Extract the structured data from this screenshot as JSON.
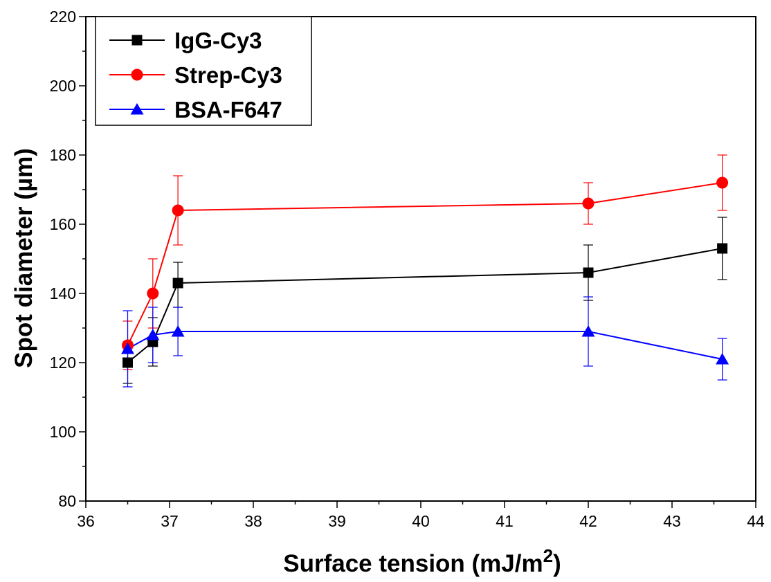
{
  "chart_data": {
    "type": "line",
    "title": "",
    "xlabel": "Surface tension (mJ/m",
    "xlabel_sup": "2",
    "xlabel_end": ")",
    "ylabel": "Spot diameter (µm)",
    "xlim": [
      36,
      44
    ],
    "ylim": [
      80,
      220
    ],
    "xticks": [
      "36",
      "37",
      "38",
      "39",
      "40",
      "41",
      "42",
      "43",
      "44"
    ],
    "yticks": [
      "80",
      "100",
      "120",
      "140",
      "160",
      "180",
      "200",
      "220"
    ],
    "grid": false,
    "legend_position": "top-left",
    "x": [
      36.5,
      36.8,
      37.1,
      42.0,
      43.6
    ],
    "series": [
      {
        "name": "IgG-Cy3",
        "color": "#000000",
        "marker": "square",
        "values": [
          120,
          126,
          143,
          146,
          153
        ],
        "error_low": [
          114,
          119,
          136,
          138,
          144
        ],
        "error_high": [
          126,
          133,
          149,
          154,
          162
        ]
      },
      {
        "name": "Strep-Cy3",
        "color": "#ff0000",
        "marker": "circle",
        "values": [
          125,
          140,
          164,
          166,
          172
        ],
        "error_low": [
          118,
          130,
          154,
          160,
          164
        ],
        "error_high": [
          132,
          150,
          174,
          172,
          180
        ]
      },
      {
        "name": "BSA-F647",
        "color": "#0000ff",
        "marker": "triangle",
        "values": [
          124,
          128,
          129,
          129,
          121
        ],
        "error_low": [
          113,
          120,
          122,
          119,
          115
        ],
        "error_high": [
          135,
          136,
          136,
          139,
          127
        ]
      }
    ]
  }
}
